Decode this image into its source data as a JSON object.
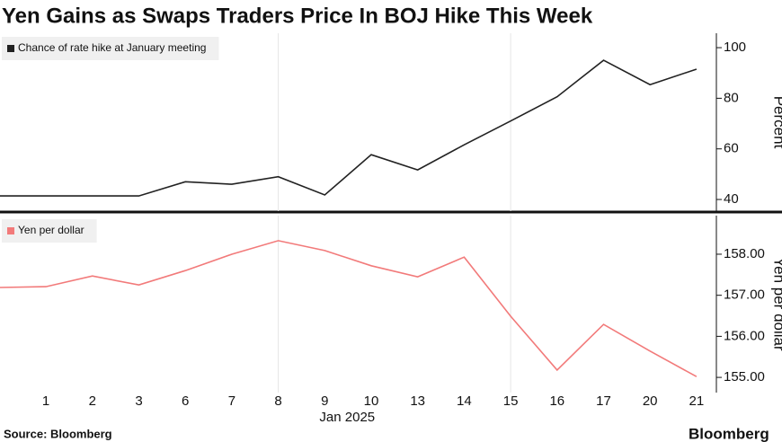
{
  "title": "Yen Gains as Swaps Traders Price In BOJ Hike This Week",
  "source": "Source: Bloomberg",
  "brand": "Bloomberg",
  "chart_data": [
    {
      "type": "line",
      "series": [
        {
          "name": "Chance of rate hike at January meeting",
          "color": "#222222",
          "values": [
            41.4,
            41.4,
            41.4,
            41.4,
            47,
            46,
            49,
            41.8,
            57.7,
            51.7,
            61.6,
            71,
            80.6,
            95,
            85.4,
            91.5
          ]
        }
      ],
      "ylim": [
        35.4,
        105.7
      ],
      "yticks": [
        40,
        60,
        80,
        100
      ],
      "ylabel": "Percent"
    },
    {
      "type": "line",
      "series": [
        {
          "name": "Yen per dollar",
          "color": "#f27a7a",
          "values": [
            157.19,
            157.21,
            157.47,
            157.25,
            157.6,
            158.0,
            158.33,
            158.09,
            157.72,
            157.45,
            157.93,
            156.49,
            155.18,
            156.29,
            155.64,
            155.02
          ]
        }
      ],
      "categories": [
        null,
        "1",
        "2",
        "3",
        "6",
        "7",
        "8",
        "9",
        "10",
        "13",
        "14",
        "15",
        "16",
        "17",
        "20",
        "21"
      ],
      "xlabel": "Jan 2025",
      "ylim": [
        154.63,
        158.94
      ],
      "yticks": [
        {
          "value": 155,
          "label": "155.00"
        },
        {
          "value": 156,
          "label": "156.00"
        },
        {
          "value": 157,
          "label": "157.00"
        },
        {
          "value": 158,
          "label": "158.00"
        }
      ],
      "ylabel": "Yen per dollar"
    }
  ]
}
